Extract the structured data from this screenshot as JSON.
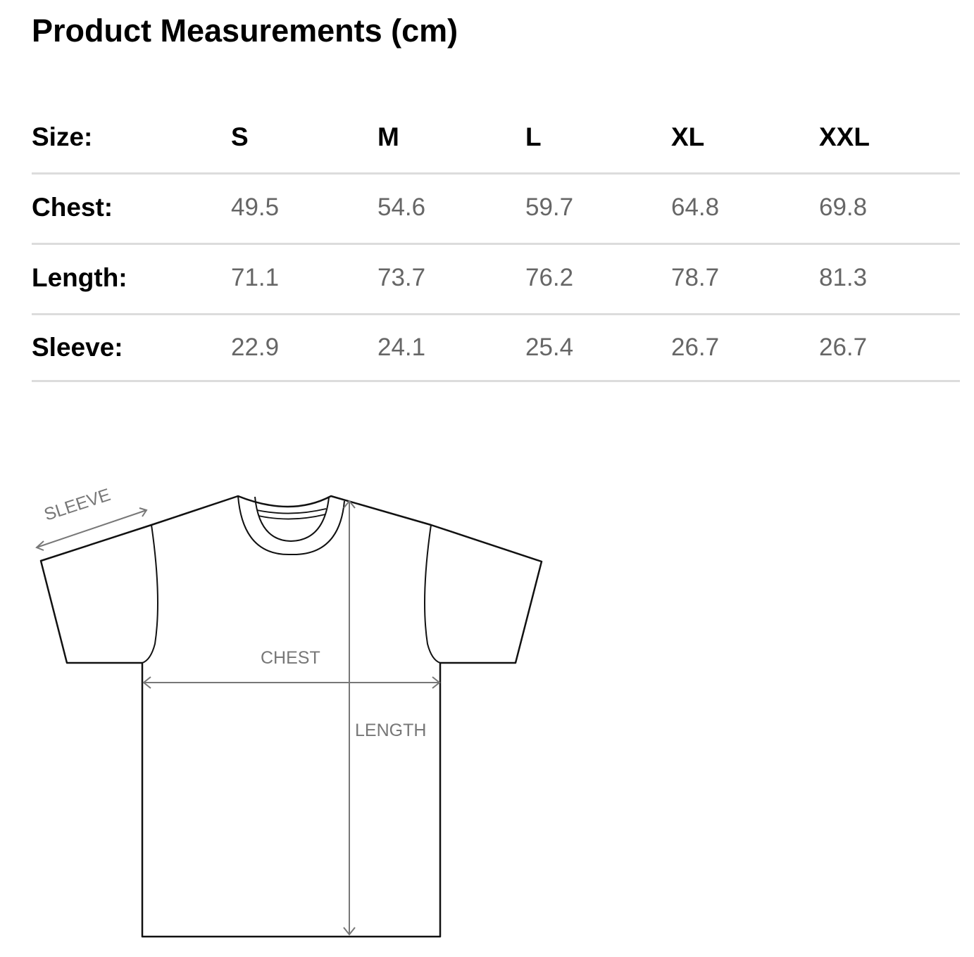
{
  "title": "Product Measurements (cm)",
  "table": {
    "header": {
      "label": "Size:",
      "sizes": [
        "S",
        "M",
        "L",
        "XL",
        "XXL"
      ]
    },
    "rows": [
      {
        "label": "Chest:",
        "values": [
          "49.5",
          "54.6",
          "59.7",
          "64.8",
          "69.8"
        ]
      },
      {
        "label": "Length:",
        "values": [
          "71.1",
          "73.7",
          "76.2",
          "78.7",
          "81.3"
        ]
      },
      {
        "label": "Sleeve:",
        "values": [
          "22.9",
          "24.1",
          "25.4",
          "26.7",
          "26.7"
        ]
      }
    ]
  },
  "diagram": {
    "sleeve_label": "SLEEVE",
    "chest_label": "CHEST",
    "length_label": "LENGTH"
  },
  "colors": {
    "text": "#000000",
    "value_text": "#666666",
    "divider": "#dcdcdc",
    "diagram_label": "#777777"
  }
}
